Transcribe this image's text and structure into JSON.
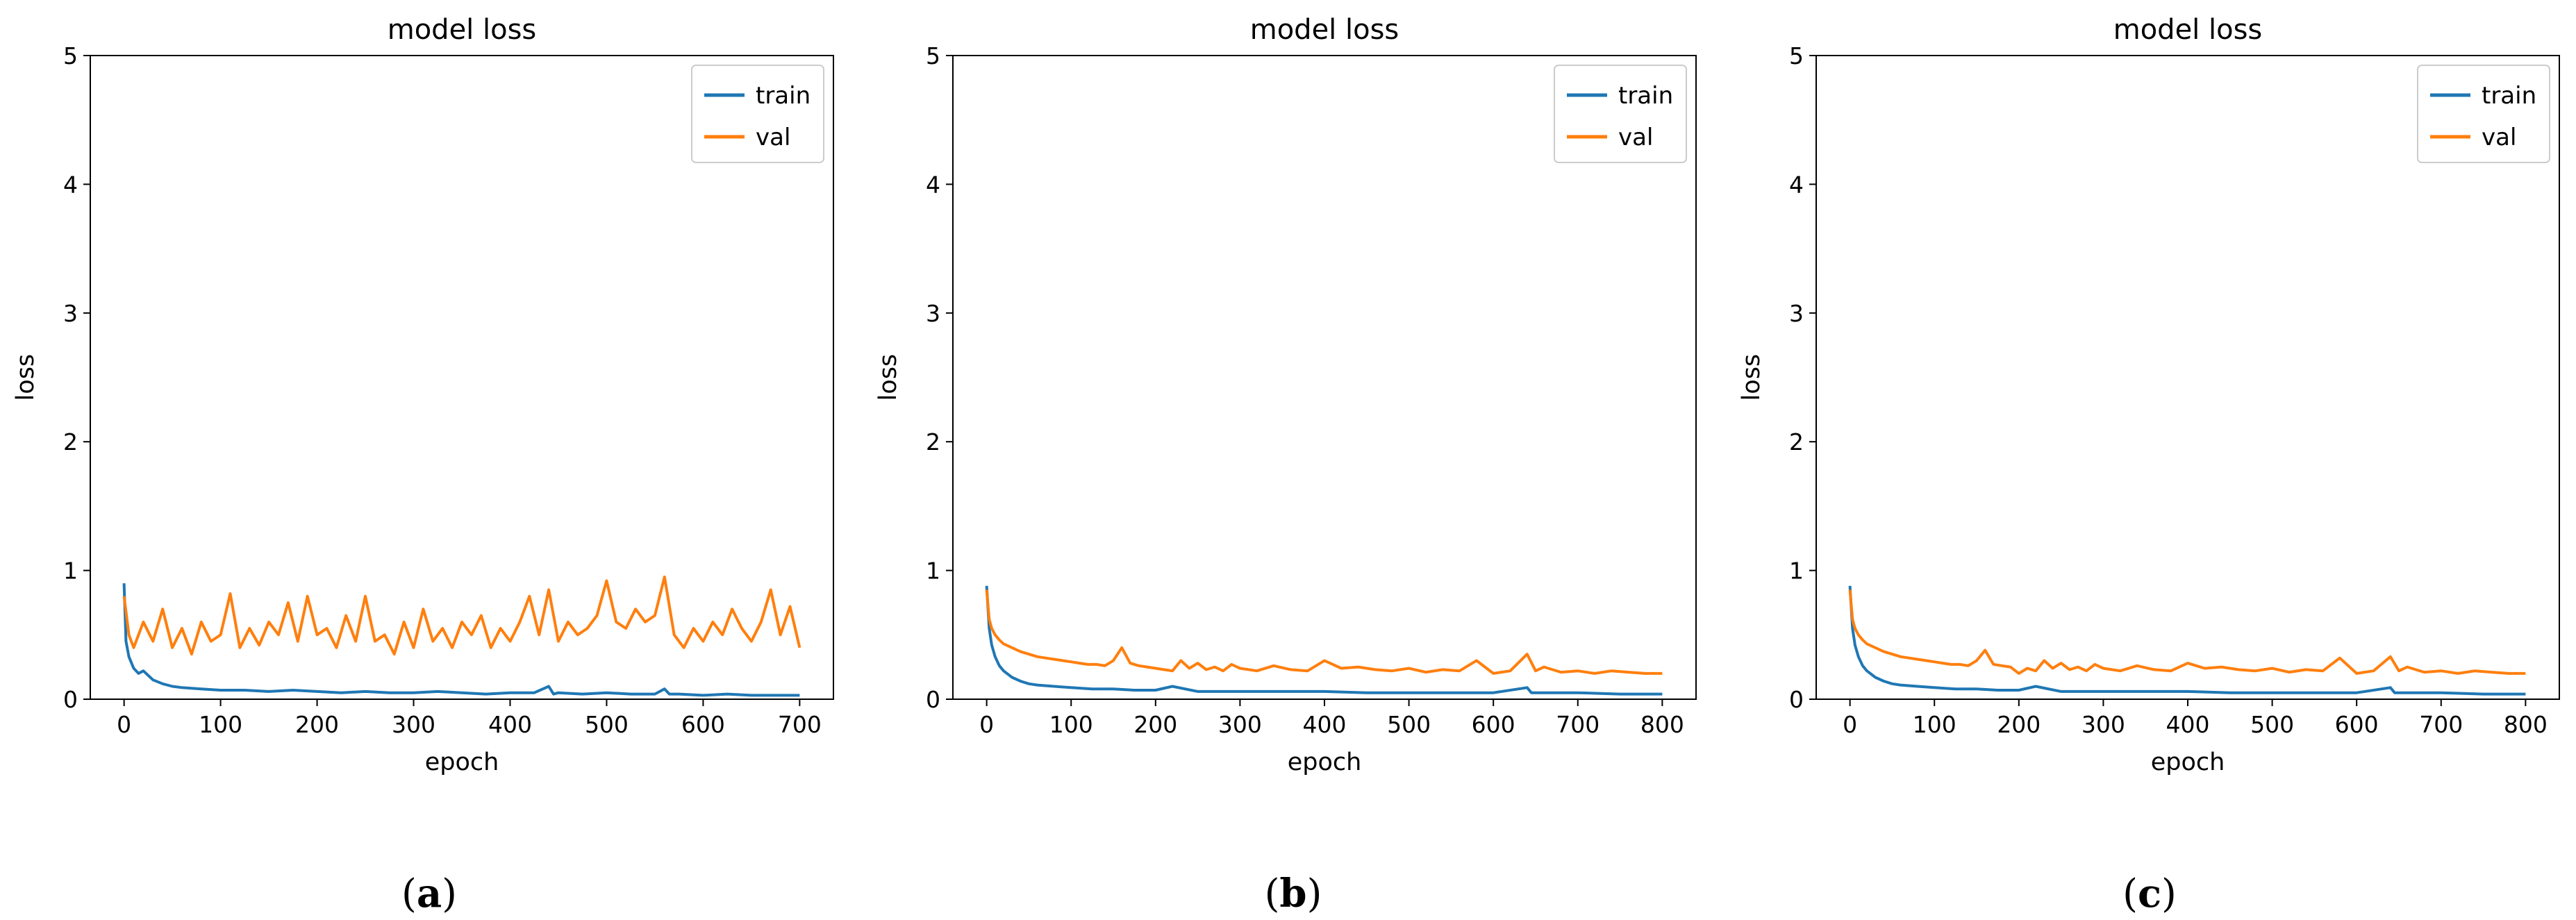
{
  "colors": {
    "train": "#1f77b4",
    "val": "#ff7f0e",
    "frame": "#000000"
  },
  "chart_data": [
    {
      "type": "line",
      "panel": "a",
      "caption_open": "(",
      "caption_letter": "a",
      "caption_close": ")",
      "title": "model loss",
      "xlabel": "epoch",
      "ylabel": "loss",
      "xlim": [
        -35,
        735
      ],
      "ylim": [
        0,
        5
      ],
      "xticks": [
        0,
        100,
        200,
        300,
        400,
        500,
        600,
        700
      ],
      "yticks": [
        0,
        1,
        2,
        3,
        4,
        5
      ],
      "legend": {
        "location": "top-right",
        "entries": [
          "train",
          "val"
        ]
      },
      "series": [
        {
          "name": "train",
          "x": [
            0,
            2,
            5,
            10,
            15,
            20,
            30,
            40,
            50,
            60,
            80,
            100,
            125,
            150,
            175,
            200,
            225,
            250,
            275,
            300,
            325,
            350,
            375,
            400,
            425,
            440,
            445,
            450,
            475,
            500,
            525,
            550,
            560,
            565,
            575,
            600,
            625,
            650,
            675,
            700
          ],
          "values": [
            0.9,
            0.45,
            0.33,
            0.24,
            0.2,
            0.22,
            0.15,
            0.12,
            0.1,
            0.09,
            0.08,
            0.07,
            0.07,
            0.06,
            0.07,
            0.06,
            0.05,
            0.06,
            0.05,
            0.05,
            0.06,
            0.05,
            0.04,
            0.05,
            0.05,
            0.1,
            0.04,
            0.05,
            0.04,
            0.05,
            0.04,
            0.04,
            0.08,
            0.04,
            0.04,
            0.03,
            0.04,
            0.03,
            0.03,
            0.03
          ]
        },
        {
          "name": "val",
          "x": [
            0,
            5,
            10,
            20,
            30,
            40,
            50,
            60,
            70,
            80,
            90,
            100,
            110,
            120,
            130,
            140,
            150,
            160,
            170,
            180,
            190,
            200,
            210,
            220,
            230,
            240,
            250,
            260,
            270,
            280,
            290,
            300,
            310,
            320,
            330,
            340,
            350,
            360,
            370,
            380,
            390,
            400,
            410,
            420,
            430,
            440,
            450,
            460,
            470,
            480,
            490,
            500,
            510,
            520,
            530,
            540,
            550,
            560,
            570,
            580,
            590,
            600,
            610,
            620,
            630,
            640,
            650,
            660,
            670,
            680,
            690,
            700
          ],
          "values": [
            0.8,
            0.5,
            0.4,
            0.6,
            0.45,
            0.7,
            0.4,
            0.55,
            0.35,
            0.6,
            0.45,
            0.5,
            0.82,
            0.4,
            0.55,
            0.42,
            0.6,
            0.5,
            0.75,
            0.45,
            0.8,
            0.5,
            0.55,
            0.4,
            0.65,
            0.45,
            0.8,
            0.45,
            0.5,
            0.35,
            0.6,
            0.4,
            0.7,
            0.45,
            0.55,
            0.4,
            0.6,
            0.5,
            0.65,
            0.4,
            0.55,
            0.45,
            0.6,
            0.8,
            0.5,
            0.85,
            0.45,
            0.6,
            0.5,
            0.55,
            0.65,
            0.92,
            0.6,
            0.55,
            0.7,
            0.6,
            0.65,
            0.95,
            0.5,
            0.4,
            0.55,
            0.45,
            0.6,
            0.5,
            0.7,
            0.55,
            0.45,
            0.6,
            0.85,
            0.5,
            0.72,
            0.4
          ]
        }
      ]
    },
    {
      "type": "line",
      "panel": "b",
      "caption_open": "(",
      "caption_letter": "b",
      "caption_close": ")",
      "title": "model loss",
      "xlabel": "epoch",
      "ylabel": "loss",
      "xlim": [
        -40,
        840
      ],
      "ylim": [
        0,
        5
      ],
      "xticks": [
        0,
        100,
        200,
        300,
        400,
        500,
        600,
        700,
        800
      ],
      "yticks": [
        0,
        1,
        2,
        3,
        4,
        5
      ],
      "legend": {
        "location": "top-right",
        "entries": [
          "train",
          "val"
        ]
      },
      "series": [
        {
          "name": "train",
          "x": [
            0,
            3,
            6,
            10,
            15,
            20,
            30,
            40,
            50,
            60,
            80,
            100,
            125,
            150,
            175,
            200,
            220,
            250,
            300,
            350,
            400,
            450,
            500,
            550,
            600,
            640,
            645,
            650,
            700,
            750,
            800
          ],
          "values": [
            0.88,
            0.55,
            0.42,
            0.33,
            0.26,
            0.22,
            0.17,
            0.14,
            0.12,
            0.11,
            0.1,
            0.09,
            0.08,
            0.08,
            0.07,
            0.07,
            0.1,
            0.06,
            0.06,
            0.06,
            0.06,
            0.05,
            0.05,
            0.05,
            0.05,
            0.09,
            0.05,
            0.05,
            0.05,
            0.04,
            0.04
          ]
        },
        {
          "name": "val",
          "x": [
            0,
            3,
            6,
            10,
            15,
            20,
            30,
            40,
            50,
            60,
            70,
            80,
            90,
            100,
            110,
            120,
            130,
            140,
            150,
            160,
            170,
            180,
            190,
            200,
            210,
            220,
            230,
            240,
            250,
            260,
            270,
            280,
            290,
            300,
            320,
            340,
            360,
            380,
            400,
            420,
            440,
            460,
            480,
            500,
            520,
            540,
            560,
            580,
            600,
            620,
            640,
            650,
            660,
            680,
            700,
            720,
            740,
            760,
            780,
            800
          ],
          "values": [
            0.85,
            0.62,
            0.55,
            0.5,
            0.46,
            0.43,
            0.4,
            0.37,
            0.35,
            0.33,
            0.32,
            0.31,
            0.3,
            0.29,
            0.28,
            0.27,
            0.27,
            0.26,
            0.3,
            0.4,
            0.28,
            0.26,
            0.25,
            0.24,
            0.23,
            0.22,
            0.3,
            0.24,
            0.28,
            0.23,
            0.25,
            0.22,
            0.27,
            0.24,
            0.22,
            0.26,
            0.23,
            0.22,
            0.3,
            0.24,
            0.25,
            0.23,
            0.22,
            0.24,
            0.21,
            0.23,
            0.22,
            0.3,
            0.2,
            0.22,
            0.35,
            0.22,
            0.25,
            0.21,
            0.22,
            0.2,
            0.22,
            0.21,
            0.2,
            0.2
          ]
        }
      ]
    },
    {
      "type": "line",
      "panel": "c",
      "caption_open": "(",
      "caption_letter": "c",
      "caption_close": ")",
      "title": "model loss",
      "xlabel": "epoch",
      "ylabel": "loss",
      "xlim": [
        -40,
        840
      ],
      "ylim": [
        0,
        5
      ],
      "xticks": [
        0,
        100,
        200,
        300,
        400,
        500,
        600,
        700,
        800
      ],
      "yticks": [
        0,
        1,
        2,
        3,
        4,
        5
      ],
      "legend": {
        "location": "top-right",
        "entries": [
          "train",
          "val"
        ]
      },
      "series": [
        {
          "name": "train",
          "x": [
            0,
            3,
            6,
            10,
            15,
            20,
            30,
            40,
            50,
            60,
            80,
            100,
            125,
            150,
            175,
            200,
            220,
            250,
            300,
            350,
            400,
            450,
            500,
            550,
            600,
            640,
            645,
            650,
            700,
            750,
            800
          ],
          "values": [
            0.88,
            0.55,
            0.42,
            0.33,
            0.26,
            0.22,
            0.17,
            0.14,
            0.12,
            0.11,
            0.1,
            0.09,
            0.08,
            0.08,
            0.07,
            0.07,
            0.1,
            0.06,
            0.06,
            0.06,
            0.06,
            0.05,
            0.05,
            0.05,
            0.05,
            0.09,
            0.05,
            0.05,
            0.05,
            0.04,
            0.04
          ]
        },
        {
          "name": "val",
          "x": [
            0,
            3,
            6,
            10,
            15,
            20,
            30,
            40,
            50,
            60,
            70,
            80,
            90,
            100,
            110,
            120,
            130,
            140,
            150,
            160,
            170,
            180,
            190,
            200,
            210,
            220,
            230,
            240,
            250,
            260,
            270,
            280,
            290,
            300,
            320,
            340,
            360,
            380,
            400,
            420,
            440,
            460,
            480,
            500,
            520,
            540,
            560,
            580,
            600,
            620,
            640,
            650,
            660,
            680,
            700,
            720,
            740,
            760,
            780,
            800
          ],
          "values": [
            0.85,
            0.62,
            0.55,
            0.5,
            0.46,
            0.43,
            0.4,
            0.37,
            0.35,
            0.33,
            0.32,
            0.31,
            0.3,
            0.29,
            0.28,
            0.27,
            0.27,
            0.26,
            0.3,
            0.38,
            0.27,
            0.26,
            0.25,
            0.2,
            0.24,
            0.22,
            0.3,
            0.24,
            0.28,
            0.23,
            0.25,
            0.22,
            0.27,
            0.24,
            0.22,
            0.26,
            0.23,
            0.22,
            0.28,
            0.24,
            0.25,
            0.23,
            0.22,
            0.24,
            0.21,
            0.23,
            0.22,
            0.32,
            0.2,
            0.22,
            0.33,
            0.22,
            0.25,
            0.21,
            0.22,
            0.2,
            0.22,
            0.21,
            0.2,
            0.2
          ]
        }
      ]
    }
  ]
}
